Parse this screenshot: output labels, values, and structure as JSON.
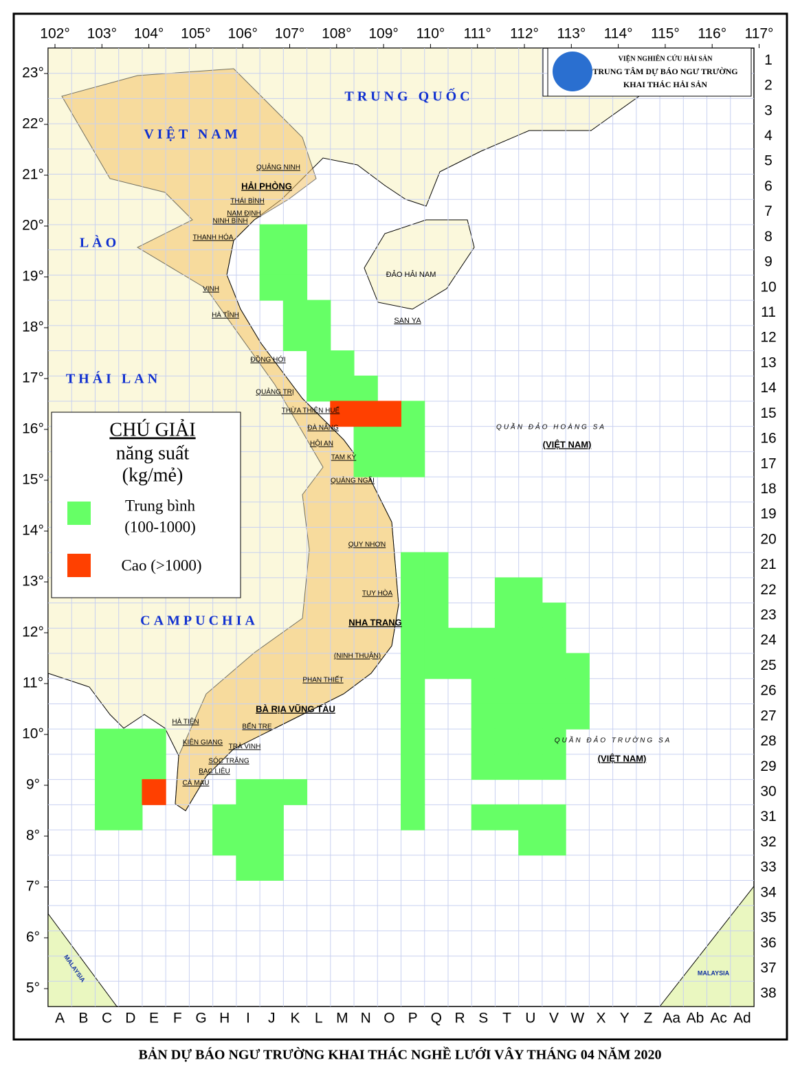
{
  "header": {
    "lines": [
      "VIỆN NGHIÊN CỨU HẢI SẢN",
      "TRUNG TÂM DỰ BÁO NGƯ TRƯỜNG",
      "KHAI THÁC HẢI SẢN"
    ]
  },
  "map": {
    "longitudes": [
      {
        "value": 102,
        "label": "102°"
      },
      {
        "value": 103,
        "label": "103°"
      },
      {
        "value": 104,
        "label": "104°"
      },
      {
        "value": 105,
        "label": "105°"
      },
      {
        "value": 106,
        "label": "106°"
      },
      {
        "value": 107,
        "label": "107°"
      },
      {
        "value": 108,
        "label": "108°"
      },
      {
        "value": 109,
        "label": "109°"
      },
      {
        "value": 110,
        "label": "110°"
      },
      {
        "value": 111,
        "label": "111°"
      },
      {
        "value": 112,
        "label": "112°"
      },
      {
        "value": 113,
        "label": "113°"
      },
      {
        "value": 114,
        "label": "114°"
      },
      {
        "value": 115,
        "label": "115°"
      },
      {
        "value": 116,
        "label": "116°"
      },
      {
        "value": 117,
        "label": "117°"
      }
    ],
    "latitudes": [
      {
        "value": 23,
        "label": "23°"
      },
      {
        "value": 22,
        "label": "22°"
      },
      {
        "value": 21,
        "label": "21°"
      },
      {
        "value": 20,
        "label": "20°"
      },
      {
        "value": 19,
        "label": "19°"
      },
      {
        "value": 18,
        "label": "18°"
      },
      {
        "value": 17,
        "label": "17°"
      },
      {
        "value": 16,
        "label": "16°"
      },
      {
        "value": 15,
        "label": "15°"
      },
      {
        "value": 14,
        "label": "14°"
      },
      {
        "value": 13,
        "label": "13°"
      },
      {
        "value": 12,
        "label": "12°"
      },
      {
        "value": 11,
        "label": "11°"
      },
      {
        "value": 10,
        "label": "10°"
      },
      {
        "value": 9,
        "label": "9°"
      },
      {
        "value": 8,
        "label": "8°"
      },
      {
        "value": 7,
        "label": "7°"
      },
      {
        "value": 6,
        "label": "6°"
      },
      {
        "value": 5,
        "label": "5°"
      }
    ],
    "rows": [
      1,
      2,
      3,
      4,
      5,
      6,
      7,
      8,
      9,
      10,
      11,
      12,
      13,
      14,
      15,
      16,
      17,
      18,
      19,
      20,
      21,
      22,
      23,
      24,
      25,
      26,
      27,
      28,
      29,
      30,
      31,
      32,
      33,
      34,
      35,
      36,
      37,
      38
    ],
    "columns": [
      "A",
      "B",
      "C",
      "D",
      "E",
      "F",
      "G",
      "H",
      "I",
      "J",
      "K",
      "L",
      "M",
      "N",
      "O",
      "P",
      "Q",
      "R",
      "S",
      "T",
      "U",
      "V",
      "W",
      "X",
      "Y",
      "Z",
      "Aa",
      "Ab",
      "Ac",
      "Ad"
    ],
    "places": [
      "TRUNG QUỐC",
      "VIỆT NAM",
      "LÀO",
      "THÁI LAN",
      "CAMPUCHIA",
      "ĐẢO HẢI NAM",
      "SAN YA",
      "QUẦN ĐẢO HOÀNG SA",
      "(VIỆT NAM)",
      "QUẦN ĐẢO TRƯỜNG SA",
      "(VIỆT NAM)",
      "MALAYSIA",
      "MALAYSIA",
      "QUẢNG NINH",
      "HẢI PHÒNG",
      "THÁI BÌNH",
      "NAM ĐỊNH",
      "NINH BÌNH",
      "THANH HÓA",
      "VINH",
      "HÀ TĨNH",
      "ĐỒNG HỚI",
      "QUẢNG TRỊ",
      "THỪA THIÊN HUẾ",
      "ĐÀ NẴNG",
      "HỘI AN",
      "TAM KỲ",
      "QUẢNG NGÃI",
      "QUY NHƠN",
      "TUY HÒA",
      "NHA TRANG",
      "(NINH THUẬN)",
      "PHAN THIẾT",
      "BÀ RỊA VŨNG TÀU",
      "BẾN TRE",
      "TRÀ VINH",
      "SÓC TRĂNG",
      "BẠC LIÊU",
      "CÀ MAU",
      "KIÊN GIANG",
      "HÀ TIÊN"
    ]
  },
  "legend": {
    "title": "CHÚ GIẢI",
    "subtitle": "năng suất",
    "unit": "(kg/mẻ)",
    "items": [
      {
        "label": "Trung bình",
        "range": "(100-1000)",
        "color": "#66ff66",
        "cells": [
          "J8",
          "K8",
          "J9",
          "K9",
          "J10",
          "K10",
          "K11",
          "L11",
          "K12",
          "L12",
          "L13",
          "M13",
          "L14",
          "M14",
          "N14",
          "P15",
          "N16",
          "O16",
          "P16",
          "N17",
          "O17",
          "P17",
          "P21",
          "Q21",
          "P22",
          "Q22",
          "T22",
          "U22",
          "P23",
          "Q23",
          "T23",
          "U23",
          "V23",
          "P24",
          "Q24",
          "R24",
          "S24",
          "T24",
          "U24",
          "V24",
          "P25",
          "Q25",
          "R25",
          "S25",
          "T25",
          "U25",
          "V25",
          "W25",
          "P26",
          "S26",
          "T26",
          "U26",
          "V26",
          "W26",
          "P27",
          "S27",
          "T27",
          "U27",
          "V27",
          "W27",
          "P28",
          "S28",
          "T28",
          "U28",
          "V28",
          "P29",
          "S29",
          "T29",
          "U29",
          "V29",
          "P30",
          "P31",
          "S31",
          "T31",
          "U31",
          "V31",
          "U32",
          "V32",
          "C28",
          "D28",
          "E28",
          "C29",
          "D29",
          "E29",
          "C30",
          "D30",
          "C31",
          "D31",
          "I30",
          "J30",
          "K30",
          "H31",
          "I31",
          "J31",
          "H32",
          "I32",
          "J32",
          "I33",
          "J33"
        ]
      },
      {
        "label": "Cao (>1000)",
        "color": "#ff4000",
        "cells": [
          "M15",
          "N15",
          "O15",
          "E30"
        ]
      }
    ]
  },
  "footer": {
    "title": "BẢN DỰ BÁO NGƯ TRƯỜNG KHAI THÁC NGHỀ LƯỚI VÂY THÁNG 04 NĂM 2020"
  }
}
